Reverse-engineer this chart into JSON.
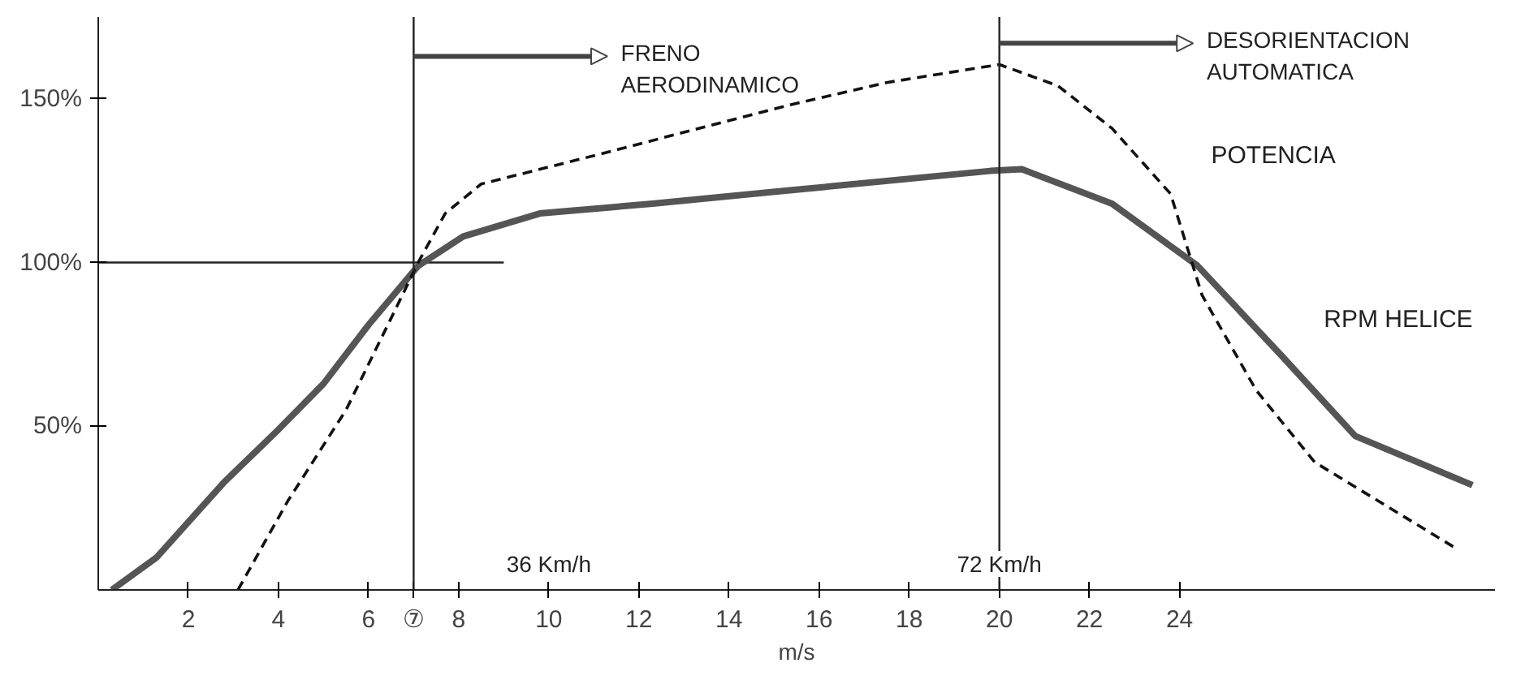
{
  "chart_data": {
    "type": "line",
    "xlabel": "m/s",
    "xlim": [
      0,
      31
    ],
    "ylim": [
      0,
      175
    ],
    "xticks": [
      2,
      4,
      6,
      {
        "value": 7,
        "label": "⑦"
      },
      8,
      10,
      12,
      14,
      16,
      18,
      20,
      22,
      24
    ],
    "yticks": [
      {
        "value": 50,
        "label": "50%"
      },
      {
        "value": 100,
        "label": "100%"
      },
      {
        "value": 150,
        "label": "150%"
      }
    ],
    "grid": false,
    "legend": false,
    "marker": "none",
    "series": [
      {
        "name": "RPM HELICE",
        "color": "#555555",
        "line_style": "solid",
        "x": [
          0.3,
          1.3,
          2.8,
          4.0,
          5.0,
          6.0,
          7.1,
          8.1,
          9.8,
          12.3,
          15.3,
          19.8,
          20.5,
          22.5,
          24.4,
          26.3,
          27.9,
          30.5
        ],
        "values": [
          0,
          10,
          33,
          49,
          63,
          81,
          99,
          108,
          115,
          118,
          122,
          128,
          128.5,
          118,
          99,
          71,
          47,
          32
        ]
      },
      {
        "name": "POTENCIA",
        "color": "#111111",
        "line_style": "dashed",
        "x": [
          3.1,
          4.2,
          5.5,
          6.5,
          7.1,
          7.7,
          8.5,
          11.1,
          15.3,
          17.5,
          20,
          21.3,
          22.5,
          23.8,
          24.5,
          25.7,
          27,
          30.1
        ],
        "values": [
          0,
          27,
          55,
          83,
          100,
          115,
          124,
          133,
          148,
          155,
          160.5,
          154,
          141,
          121,
          90,
          61,
          39,
          13
        ]
      }
    ],
    "ref_lines": [
      {
        "axis": "x",
        "value": 7,
        "color": "#222222",
        "line_style": "solid"
      },
      {
        "axis": "x",
        "value": 20,
        "color": "#222222",
        "line_style": "solid"
      },
      {
        "axis": "y",
        "value": 100,
        "color": "#222222",
        "line_style": "solid"
      }
    ],
    "x2lim": [
      0,
      111.6
    ],
    "x2ticks": [
      {
        "value": 36,
        "label": "36 Km/h"
      },
      {
        "value": 72,
        "label": "72 Km/h"
      }
    ],
    "annotations": [
      "FRENO\nAERODINAMICO",
      "DESORIENTACION\nAUTOMATICA"
    ]
  }
}
